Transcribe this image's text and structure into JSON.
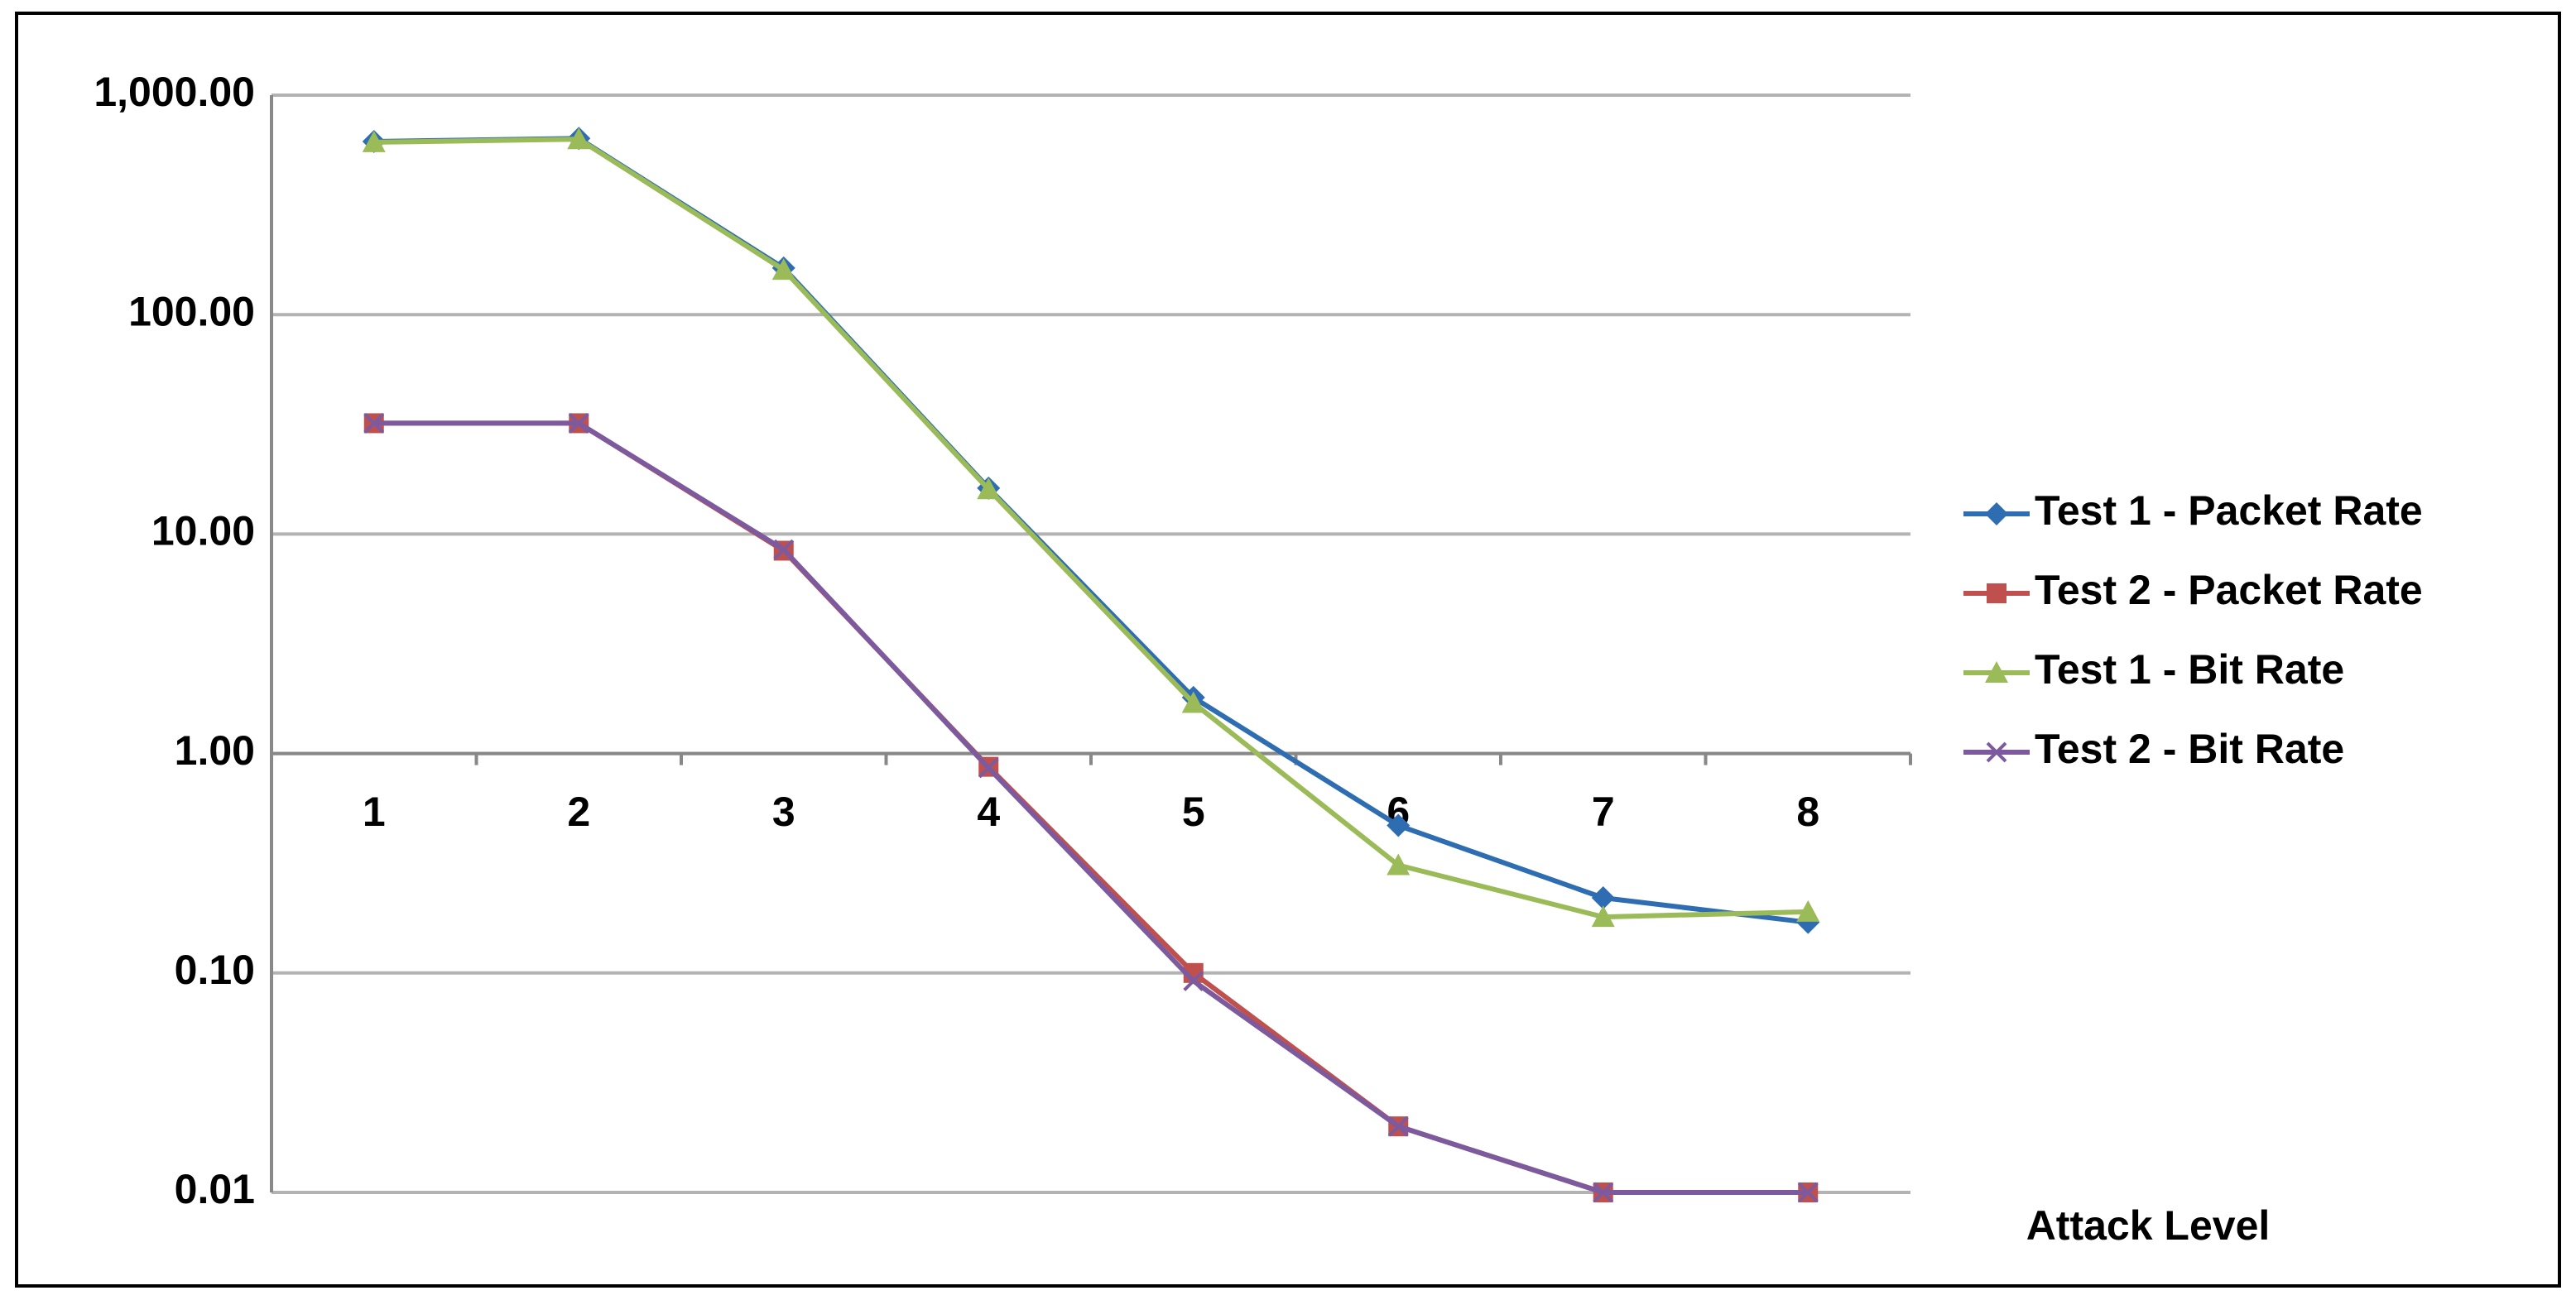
{
  "chart_data": {
    "type": "line",
    "x_label": "Attack Level",
    "categories": [
      "1",
      "2",
      "3",
      "4",
      "5",
      "6",
      "7",
      "8"
    ],
    "series": [
      {
        "name": "Test 1 - Packet Rate",
        "color": "#2f6db3",
        "marker": "diamond",
        "values": [
          615,
          635,
          163,
          16.2,
          1.8,
          0.47,
          0.22,
          0.17
        ]
      },
      {
        "name": "Test 2 - Packet Rate",
        "color": "#c0504d",
        "marker": "square",
        "values": [
          32,
          32,
          8.4,
          0.87,
          0.1,
          0.02,
          0.01,
          0.01
        ]
      },
      {
        "name": "Test 1 - Bit Rate",
        "color": "#9bbb59",
        "marker": "triangle",
        "values": [
          610,
          630,
          160,
          16,
          1.7,
          0.31,
          0.18,
          0.19
        ]
      },
      {
        "name": "Test 2 - Bit Rate",
        "color": "#7d5a9e",
        "marker": "x",
        "values": [
          32,
          32,
          8.5,
          0.86,
          0.092,
          0.02,
          0.01,
          0.01
        ]
      }
    ],
    "ylim": [
      0.01,
      1000
    ],
    "log_scale": true,
    "x_axis_at": 1,
    "yticks": [
      {
        "value": 0.01,
        "label": "0.01"
      },
      {
        "value": 0.1,
        "label": "0.10"
      },
      {
        "value": 1,
        "label": "1.00"
      },
      {
        "value": 10,
        "label": "10.00"
      },
      {
        "value": 100,
        "label": "100.00"
      },
      {
        "value": 1000,
        "label": "1,000.00"
      }
    ],
    "grid": true,
    "legend": "right"
  }
}
